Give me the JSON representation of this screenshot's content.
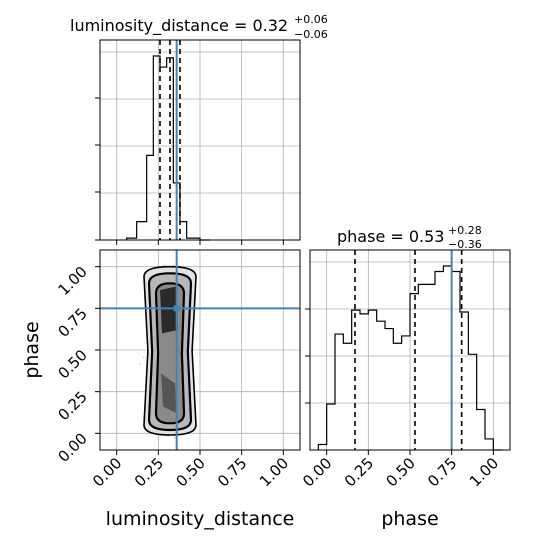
{
  "chart_data": {
    "type": "corner",
    "parameters": [
      "luminosity_distance",
      "phase"
    ],
    "truth": {
      "luminosity_distance": 0.36,
      "phase": 0.75
    },
    "colors": {
      "truth": "#4682b4",
      "hist": "#000000",
      "grid": "#b0b0b0",
      "density_dark": "#333333",
      "scatter": "#aaaaaa"
    },
    "grid": true,
    "panels": {
      "hist_lum": {
        "title": {
          "main": "luminosity_distance = 0.32",
          "sup": "+0.06",
          "sub": "−0.06"
        },
        "xlim": [
          -0.1,
          1.1
        ],
        "quantiles": [
          0.26,
          0.32,
          0.38
        ],
        "bin_edges": [
          0.06,
          0.12,
          0.18,
          0.22,
          0.26,
          0.3,
          0.34,
          0.38,
          0.42,
          0.5,
          0.56
        ],
        "bin_heights": [
          0.01,
          0.1,
          0.46,
          1.0,
          0.94,
          0.99,
          0.31,
          0.1,
          0.01,
          0.0
        ]
      },
      "hist_phase": {
        "title": {
          "main": "phase = 0.53",
          "sup": "+0.28",
          "sub": "−0.36"
        },
        "xlim": [
          -0.1,
          1.1
        ],
        "quantiles": [
          0.17,
          0.53,
          0.81
        ],
        "bin_edges": [
          -0.05,
          0.0,
          0.05,
          0.1,
          0.15,
          0.2,
          0.25,
          0.3,
          0.35,
          0.4,
          0.45,
          0.5,
          0.55,
          0.6,
          0.65,
          0.7,
          0.75,
          0.8,
          0.85,
          0.9,
          0.95,
          1.0,
          1.05
        ],
        "bin_heights": [
          0.03,
          0.25,
          0.63,
          0.58,
          0.76,
          0.74,
          0.76,
          0.7,
          0.66,
          0.58,
          0.62,
          0.85,
          0.9,
          0.9,
          0.97,
          1.0,
          0.97,
          0.75,
          0.52,
          0.22,
          0.06,
          0.0
        ]
      },
      "scatter_2d": {
        "xlim": [
          -0.1,
          1.1
        ],
        "ylim": [
          -0.1,
          1.1
        ],
        "xlabel": "luminosity_distance",
        "ylabel": "phase",
        "center_x": 0.32,
        "x_spread": 0.045,
        "y_range": [
          0.0,
          1.0
        ]
      },
      "hist_phase_xlabel": "phase"
    },
    "ticks": {
      "values": [
        0.0,
        0.25,
        0.5,
        0.75,
        1.0
      ],
      "labels": [
        "0.00",
        "0.25",
        "0.50",
        "0.75",
        "1.00"
      ]
    }
  }
}
